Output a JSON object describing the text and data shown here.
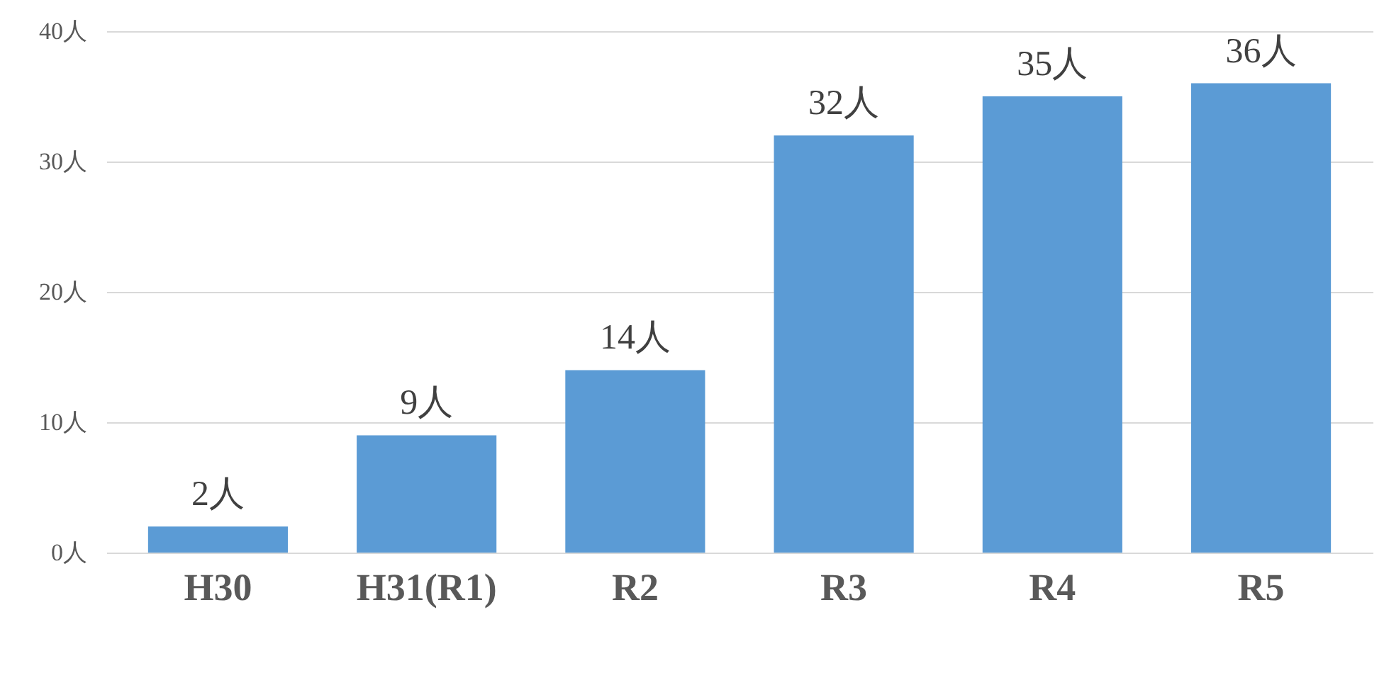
{
  "chart_data": {
    "type": "bar",
    "categories": [
      "H30",
      "H31(R1)",
      "R2",
      "R3",
      "R4",
      "R5"
    ],
    "values": [
      2,
      9,
      14,
      32,
      35,
      36
    ],
    "color": "#5b9bd5",
    "value_labels": [
      "2人",
      "9人",
      "14人",
      "32人",
      "35人",
      "36人"
    ],
    "ylim": [
      0,
      40
    ],
    "yticks": [
      {
        "value": 0,
        "label": "0人"
      },
      {
        "value": 10,
        "label": "10人"
      },
      {
        "value": 20,
        "label": "20人"
      },
      {
        "value": 30,
        "label": "30人"
      },
      {
        "value": 40,
        "label": "40人"
      }
    ],
    "grid": "y"
  }
}
